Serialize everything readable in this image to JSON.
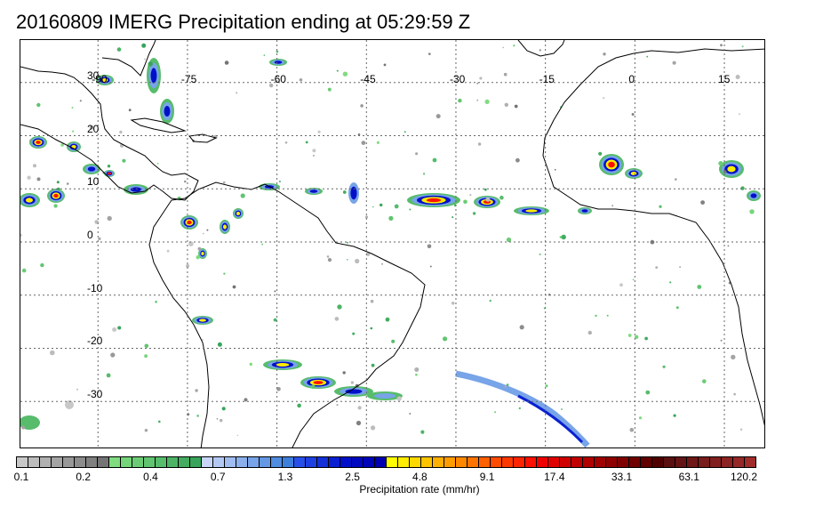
{
  "title": "20160809 IMERG Precipitation ending at 05:29:59 Z",
  "map": {
    "projection": "cylindrical",
    "lon_range": [
      -103,
      22
    ],
    "lat_range": [
      -39,
      38
    ],
    "gridlines": "dotted",
    "lon_labels": [
      "-90",
      "-75",
      "-60",
      "-45",
      "-30",
      "-15",
      "0",
      "15"
    ],
    "lon_values": [
      -90,
      -75,
      -60,
      -45,
      -30,
      -15,
      0,
      15
    ],
    "lat_labels": [
      "30",
      "20",
      "10",
      "0",
      "-10",
      "-20",
      "-30"
    ],
    "lat_values": [
      30,
      20,
      10,
      0,
      -10,
      -20,
      -30
    ],
    "coastline_color": "#000000"
  },
  "colorbar": {
    "title": "Precipitation rate (mm/hr)",
    "tick_labels": [
      "0.1",
      "0.2",
      "0.4",
      "0.7",
      "1.3",
      "2.5",
      "4.8",
      "9.1",
      "17.4",
      "33.1",
      "63.1",
      "120.2"
    ],
    "colors": [
      "#c8c8c8",
      "#bcbcbc",
      "#b0b0b0",
      "#a4a4a4",
      "#989898",
      "#8c8c8c",
      "#808080",
      "#747474",
      "#7fdc7f",
      "#75d47a",
      "#6bcc75",
      "#61c470",
      "#57bc6b",
      "#4db466",
      "#43ac61",
      "#39a45c",
      "#c8d4f8",
      "#b4c8f4",
      "#a0bcf0",
      "#8cb0ec",
      "#78a4e8",
      "#6498e4",
      "#508ce0",
      "#3c80dc",
      "#2850e8",
      "#1e40e0",
      "#1430d8",
      "#0a20d0",
      "#0010c8",
      "#0008c0",
      "#0004b8",
      "#0000b0",
      "#ffff00",
      "#ffec00",
      "#ffd800",
      "#ffc400",
      "#ffb000",
      "#ff9c00",
      "#ff8800",
      "#ff7400",
      "#ff6000",
      "#ff4c00",
      "#ff3800",
      "#ff2400",
      "#ff1000",
      "#f00000",
      "#e00000",
      "#d00000",
      "#c00000",
      "#b00000",
      "#a00000",
      "#900000",
      "#800000",
      "#700000",
      "#600000",
      "#500000",
      "#5a1010",
      "#641414",
      "#6e1818",
      "#781c1c",
      "#822020",
      "#8c2424",
      "#962828",
      "#a02c2c"
    ]
  }
}
